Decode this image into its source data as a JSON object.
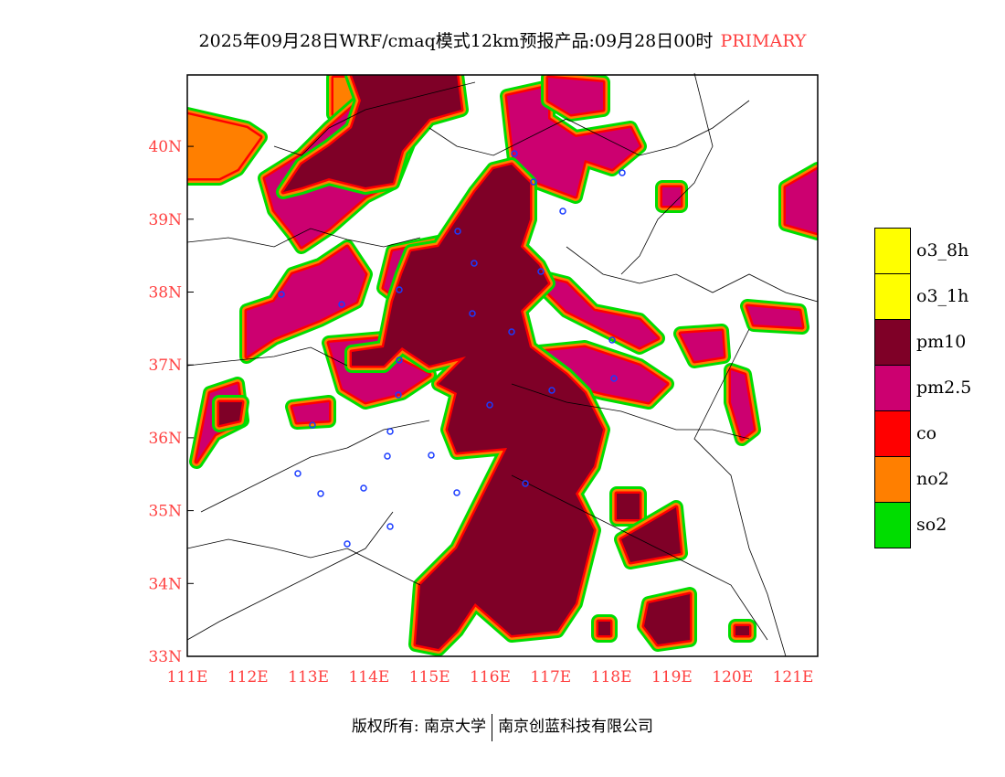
{
  "title": {
    "main": "2025年09月28日WRF/cmaq模式12km预报产品:09月28日00时",
    "tag": "PRIMARY"
  },
  "axes": {
    "lon_ticks": [
      "111E",
      "112E",
      "113E",
      "114E",
      "115E",
      "116E",
      "117E",
      "118E",
      "119E",
      "120E",
      "121E"
    ],
    "lat_ticks": [
      "33N",
      "34N",
      "35N",
      "36N",
      "37N",
      "38N",
      "39N",
      "40N"
    ]
  },
  "legend": [
    {
      "label": "o3_8h",
      "color": "#ffff00"
    },
    {
      "label": "o3_1h",
      "color": "#ffff00"
    },
    {
      "label": "pm10",
      "color": "#7f0027"
    },
    {
      "label": "pm2.5",
      "color": "#cc0070"
    },
    {
      "label": "co",
      "color": "#ff0000"
    },
    {
      "label": "no2",
      "color": "#ff7f00"
    },
    {
      "label": "so2",
      "color": "#00dd00"
    }
  ],
  "footer": {
    "left": "版权所有: 南京大学",
    "right": "南京创蓝科技有限公司"
  }
}
